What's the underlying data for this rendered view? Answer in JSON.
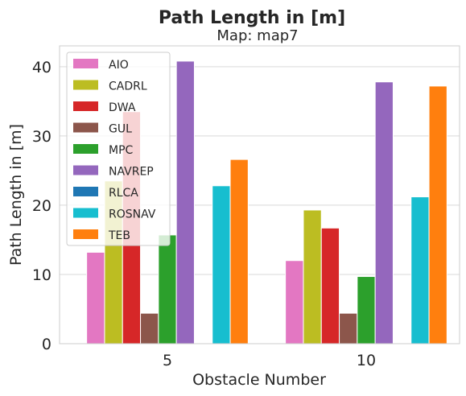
{
  "chart_data": {
    "type": "bar",
    "title": "Path Length in [m]",
    "subtitle": "Map: map7",
    "xlabel": "Obstacle Number",
    "ylabel": "Path Length in [m]",
    "categories": [
      "5",
      "10"
    ],
    "ylim": [
      0,
      43
    ],
    "yticks": [
      0,
      10,
      20,
      30,
      40
    ],
    "grid": true,
    "legend_position": "top-left",
    "series": [
      {
        "name": "AIO",
        "color": "#e377c2",
        "values": [
          13.2,
          12.0
        ]
      },
      {
        "name": "CADRL",
        "color": "#bcbd22",
        "values": [
          23.5,
          19.3
        ]
      },
      {
        "name": "DWA",
        "color": "#d62728",
        "values": [
          33.5,
          16.7
        ]
      },
      {
        "name": "GUL",
        "color": "#8c564b",
        "values": [
          4.4,
          4.4
        ]
      },
      {
        "name": "MPC",
        "color": "#2ca02c",
        "values": [
          15.7,
          9.7
        ]
      },
      {
        "name": "NAVREP",
        "color": "#9467bd",
        "values": [
          40.8,
          37.8
        ]
      },
      {
        "name": "RLCA",
        "color": "#1f77b4",
        "values": [
          null,
          null
        ]
      },
      {
        "name": "ROSNAV",
        "color": "#17becf",
        "values": [
          22.8,
          21.2
        ]
      },
      {
        "name": "TEB",
        "color": "#ff7f0e",
        "values": [
          26.6,
          37.2
        ]
      }
    ]
  }
}
